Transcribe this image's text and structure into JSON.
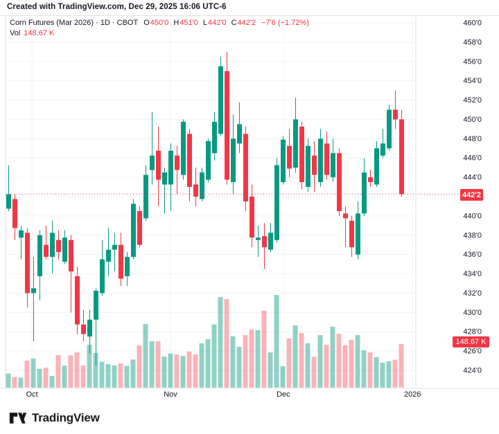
{
  "header": {
    "credit": "Created with TradingView.com, Dec 29, 2025 16:06 UTC-6"
  },
  "legend": {
    "symbol": "Corn Futures (Mar 2026) · 1D · CBOT",
    "o_label": "O",
    "o_value": "450'0",
    "h_label": "H",
    "h_value": "451'0",
    "l_label": "L",
    "l_value": "442'0",
    "c_label": "C",
    "c_value": "442'2",
    "change": "−7'6 (−1.72%)",
    "vol_label": "Vol",
    "vol_value": "148.67 K"
  },
  "price_axis": {
    "ticks": [
      {
        "label": "460'0",
        "value": 460
      },
      {
        "label": "458'0",
        "value": 458
      },
      {
        "label": "456'0",
        "value": 456
      },
      {
        "label": "454'0",
        "value": 454
      },
      {
        "label": "452'0",
        "value": 452
      },
      {
        "label": "450'0",
        "value": 450
      },
      {
        "label": "448'0",
        "value": 448
      },
      {
        "label": "446'0",
        "value": 446
      },
      {
        "label": "444'0",
        "value": 444
      },
      {
        "label": "440'0",
        "value": 440
      },
      {
        "label": "438'0",
        "value": 438
      },
      {
        "label": "436'0",
        "value": 436
      },
      {
        "label": "434'0",
        "value": 434
      },
      {
        "label": "432'0",
        "value": 432
      },
      {
        "label": "430'0",
        "value": 430
      },
      {
        "label": "428'0",
        "value": 428
      },
      {
        "label": "426'0",
        "value": 426
      },
      {
        "label": "424'0",
        "value": 424
      }
    ],
    "last_price_label": "442'2",
    "last_price_value": 442.25,
    "volume_badge_label": "148.67 K"
  },
  "time_axis": {
    "ticks": [
      {
        "label": "Oct",
        "pos": 3.8
      },
      {
        "label": "Nov",
        "pos": 26.0
      },
      {
        "label": "Dec",
        "pos": 44.1
      },
      {
        "label": "2026",
        "pos": 64.8
      }
    ]
  },
  "footer": {
    "logo_text": "TradingView"
  },
  "colors": {
    "up": "#089981",
    "down": "#f23645",
    "up_volume": "rgba(8,153,129,0.45)",
    "down_volume": "rgba(242,54,69,0.38)",
    "text": "#131722",
    "grid": "#f0f3fa",
    "border": "#e0e3eb",
    "last_price_line": "#f23645"
  },
  "chart_data": {
    "type": "candlestick+volume",
    "title": "Corn Futures (Mar 2026) · 1D · CBOT",
    "interval": "1D",
    "exchange": "CBOT",
    "last": {
      "open": 450.0,
      "high": 451.0,
      "low": 442.0,
      "close": 442.25,
      "change": "-7'6",
      "change_pct": -1.72,
      "volume_k": 148.67
    },
    "y_axis": {
      "min": 424,
      "max": 460,
      "step": 2
    },
    "x_axis_months": [
      "Oct",
      "Nov",
      "Dec",
      "2026"
    ],
    "volume_unit": "K",
    "candles": [
      {
        "o": 440.75,
        "h": 445.25,
        "l": 440.5,
        "c": 442.25,
        "v": 48
      },
      {
        "o": 441.75,
        "h": 442.25,
        "l": 437.5,
        "c": 438.75,
        "v": 36
      },
      {
        "o": 437.75,
        "h": 439.0,
        "l": 435.5,
        "c": 438.5,
        "v": 34
      },
      {
        "o": 438.25,
        "h": 438.75,
        "l": 430.5,
        "c": 432.0,
        "v": 92
      },
      {
        "o": 432.0,
        "h": 435.75,
        "l": 427.0,
        "c": 432.5,
        "v": 99
      },
      {
        "o": 433.75,
        "h": 438.5,
        "l": 431.25,
        "c": 438.0,
        "v": 64
      },
      {
        "o": 437.0,
        "h": 439.0,
        "l": 435.5,
        "c": 435.75,
        "v": 68
      },
      {
        "o": 435.75,
        "h": 439.5,
        "l": 434.0,
        "c": 438.25,
        "v": 40
      },
      {
        "o": 437.5,
        "h": 438.5,
        "l": 435.5,
        "c": 436.25,
        "v": 111
      },
      {
        "o": 435.25,
        "h": 438.5,
        "l": 435.0,
        "c": 437.75,
        "v": 75
      },
      {
        "o": 437.5,
        "h": 438.0,
        "l": 430.0,
        "c": 434.25,
        "v": 110
      },
      {
        "o": 433.75,
        "h": 434.75,
        "l": 427.75,
        "c": 428.75,
        "v": 120
      },
      {
        "o": 428.75,
        "h": 430.25,
        "l": 427.0,
        "c": 427.75,
        "v": 76
      },
      {
        "o": 427.5,
        "h": 430.25,
        "l": 425.75,
        "c": 429.25,
        "v": 146
      },
      {
        "o": 429.25,
        "h": 432.5,
        "l": 424.5,
        "c": 432.25,
        "v": 118
      },
      {
        "o": 432.0,
        "h": 437.5,
        "l": 431.75,
        "c": 435.5,
        "v": 88
      },
      {
        "o": 435.25,
        "h": 438.75,
        "l": 433.75,
        "c": 436.5,
        "v": 80
      },
      {
        "o": 436.5,
        "h": 438.25,
        "l": 434.25,
        "c": 437.0,
        "v": 76
      },
      {
        "o": 437.0,
        "h": 438.25,
        "l": 432.75,
        "c": 433.5,
        "v": 82
      },
      {
        "o": 433.75,
        "h": 436.25,
        "l": 432.75,
        "c": 435.75,
        "v": 74
      },
      {
        "o": 435.75,
        "h": 441.75,
        "l": 435.5,
        "c": 441.25,
        "v": 96
      },
      {
        "o": 440.5,
        "h": 441.0,
        "l": 436.75,
        "c": 437.0,
        "v": 144
      },
      {
        "o": 439.75,
        "h": 445.25,
        "l": 439.5,
        "c": 444.25,
        "v": 217
      },
      {
        "o": 444.75,
        "h": 450.75,
        "l": 443.25,
        "c": 446.25,
        "v": 158
      },
      {
        "o": 446.75,
        "h": 449.25,
        "l": 441.0,
        "c": 443.75,
        "v": 158
      },
      {
        "o": 443.25,
        "h": 445.0,
        "l": 440.25,
        "c": 444.5,
        "v": 106
      },
      {
        "o": 443.25,
        "h": 447.5,
        "l": 440.5,
        "c": 446.75,
        "v": 116
      },
      {
        "o": 446.25,
        "h": 447.25,
        "l": 442.25,
        "c": 444.75,
        "v": 113
      },
      {
        "o": 444.25,
        "h": 450.0,
        "l": 443.75,
        "c": 449.75,
        "v": 108
      },
      {
        "o": 448.5,
        "h": 449.0,
        "l": 441.5,
        "c": 443.0,
        "v": 123
      },
      {
        "o": 443.25,
        "h": 445.0,
        "l": 441.0,
        "c": 442.0,
        "v": 113
      },
      {
        "o": 441.75,
        "h": 445.0,
        "l": 441.5,
        "c": 444.5,
        "v": 151
      },
      {
        "o": 443.75,
        "h": 448.0,
        "l": 443.5,
        "c": 447.75,
        "v": 165
      },
      {
        "o": 446.5,
        "h": 450.75,
        "l": 445.75,
        "c": 449.75,
        "v": 215
      },
      {
        "o": 448.5,
        "h": 456.5,
        "l": 448.25,
        "c": 455.5,
        "v": 309
      },
      {
        "o": 455.0,
        "h": 457.0,
        "l": 443.25,
        "c": 443.75,
        "v": 302
      },
      {
        "o": 443.5,
        "h": 450.5,
        "l": 442.25,
        "c": 448.0,
        "v": 175
      },
      {
        "o": 447.5,
        "h": 451.75,
        "l": 446.5,
        "c": 449.5,
        "v": 139
      },
      {
        "o": 448.5,
        "h": 449.25,
        "l": 440.5,
        "c": 441.5,
        "v": 179
      },
      {
        "o": 442.0,
        "h": 443.25,
        "l": 436.75,
        "c": 437.75,
        "v": 198
      },
      {
        "o": 437.5,
        "h": 439.0,
        "l": 435.75,
        "c": 437.75,
        "v": 196
      },
      {
        "o": 437.9,
        "h": 439.25,
        "l": 434.5,
        "c": 436.75,
        "v": 262
      },
      {
        "o": 436.5,
        "h": 439.25,
        "l": 436.25,
        "c": 438.25,
        "v": 120
      },
      {
        "o": 437.5,
        "h": 446.0,
        "l": 437.25,
        "c": 445.25,
        "v": 316
      },
      {
        "o": 443.5,
        "h": 448.25,
        "l": 443.25,
        "c": 447.9,
        "v": 73
      },
      {
        "o": 447.25,
        "h": 449.0,
        "l": 444.0,
        "c": 444.9,
        "v": 168
      },
      {
        "o": 445.0,
        "h": 452.25,
        "l": 444.5,
        "c": 450.0,
        "v": 212
      },
      {
        "o": 449.25,
        "h": 449.75,
        "l": 442.75,
        "c": 443.5,
        "v": 186
      },
      {
        "o": 443.0,
        "h": 448.0,
        "l": 442.5,
        "c": 447.25,
        "v": 151
      },
      {
        "o": 446.25,
        "h": 447.75,
        "l": 442.5,
        "c": 444.25,
        "v": 105
      },
      {
        "o": 443.5,
        "h": 449.0,
        "l": 443.0,
        "c": 448.0,
        "v": 179
      },
      {
        "o": 447.5,
        "h": 448.75,
        "l": 443.75,
        "c": 444.25,
        "v": 146
      },
      {
        "o": 444.0,
        "h": 448.0,
        "l": 443.5,
        "c": 446.5,
        "v": 208
      },
      {
        "o": 446.5,
        "h": 447.0,
        "l": 440.0,
        "c": 440.5,
        "v": 184
      },
      {
        "o": 440.25,
        "h": 441.0,
        "l": 436.75,
        "c": 439.75,
        "v": 144
      },
      {
        "o": 439.5,
        "h": 440.0,
        "l": 435.75,
        "c": 436.75,
        "v": 163
      },
      {
        "o": 436.0,
        "h": 441.5,
        "l": 435.5,
        "c": 440.25,
        "v": 179
      },
      {
        "o": 440.25,
        "h": 446.0,
        "l": 440.0,
        "c": 444.5,
        "v": 127
      },
      {
        "o": 444.0,
        "h": 444.75,
        "l": 443.0,
        "c": 443.5,
        "v": 120
      },
      {
        "o": 443.25,
        "h": 447.75,
        "l": 443.0,
        "c": 447.0,
        "v": 104
      },
      {
        "o": 446.25,
        "h": 449.0,
        "l": 446.0,
        "c": 447.5,
        "v": 85
      },
      {
        "o": 447.0,
        "h": 451.5,
        "l": 446.75,
        "c": 451.0,
        "v": 90
      },
      {
        "o": 451.0,
        "h": 453.0,
        "l": 449.0,
        "c": 450.0,
        "v": 95
      },
      {
        "o": 450.0,
        "h": 451.0,
        "l": 442.0,
        "c": 442.25,
        "v": 148.67
      }
    ]
  }
}
